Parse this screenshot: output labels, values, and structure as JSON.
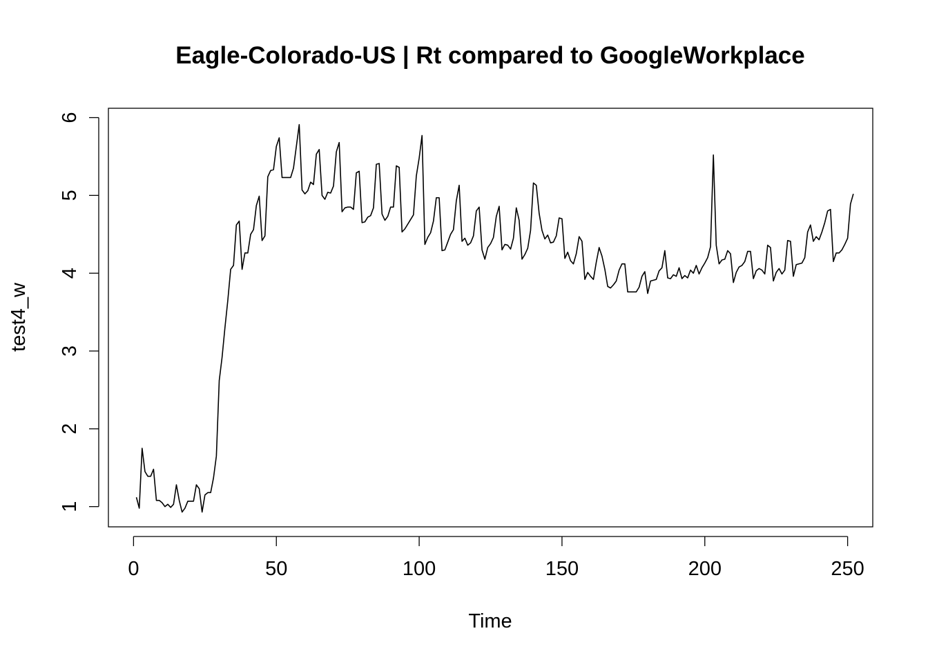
{
  "chart_data": {
    "type": "line",
    "title": "Eagle-Colorado-US | Rt compared to GoogleWorkplace",
    "xlabel": "Time",
    "ylabel": "test4_w",
    "xlim": [
      -8.8,
      258.8
    ],
    "ylim": [
      0.74,
      6.12
    ],
    "x_ticks": [
      0,
      50,
      100,
      150,
      200,
      250
    ],
    "y_ticks": [
      1,
      2,
      3,
      4,
      5,
      6
    ],
    "grid": false,
    "legend": "none",
    "line_color": "#000000",
    "series": [
      {
        "x_start": 1,
        "x_step": 1,
        "values": [
          1.12,
          0.98,
          1.75,
          1.45,
          1.39,
          1.39,
          1.48,
          1.08,
          1.08,
          1.05,
          1.0,
          1.03,
          0.99,
          1.03,
          1.28,
          1.08,
          0.93,
          0.98,
          1.07,
          1.07,
          1.07,
          1.28,
          1.23,
          0.93,
          1.15,
          1.18,
          1.18,
          1.37,
          1.65,
          2.62,
          2.92,
          3.3,
          3.65,
          4.05,
          4.1,
          4.62,
          4.67,
          4.05,
          4.26,
          4.26,
          4.5,
          4.56,
          4.87,
          4.99,
          4.42,
          4.48,
          5.24,
          5.32,
          5.33,
          5.63,
          5.74,
          5.23,
          5.23,
          5.23,
          5.23,
          5.35,
          5.63,
          5.91,
          5.07,
          5.02,
          5.06,
          5.17,
          5.14,
          5.53,
          5.59,
          5.0,
          4.95,
          5.04,
          5.03,
          5.12,
          5.56,
          5.68,
          4.79,
          4.84,
          4.85,
          4.85,
          4.82,
          5.29,
          5.31,
          4.65,
          4.66,
          4.72,
          4.74,
          4.84,
          5.4,
          5.41,
          4.76,
          4.68,
          4.73,
          4.85,
          4.85,
          5.38,
          5.36,
          4.53,
          4.57,
          4.63,
          4.69,
          4.75,
          5.25,
          5.48,
          5.77,
          4.37,
          4.46,
          4.52,
          4.67,
          4.97,
          4.97,
          4.29,
          4.3,
          4.4,
          4.5,
          4.56,
          4.93,
          5.13,
          4.41,
          4.45,
          4.36,
          4.39,
          4.48,
          4.8,
          4.85,
          4.3,
          4.18,
          4.33,
          4.38,
          4.46,
          4.73,
          4.86,
          4.3,
          4.37,
          4.36,
          4.31,
          4.45,
          4.84,
          4.68,
          4.18,
          4.24,
          4.32,
          4.55,
          5.16,
          5.13,
          4.77,
          4.55,
          4.44,
          4.49,
          4.39,
          4.4,
          4.48,
          4.71,
          4.7,
          4.19,
          4.27,
          4.16,
          4.12,
          4.25,
          4.47,
          4.41,
          3.92,
          4.01,
          3.96,
          3.92,
          4.14,
          4.33,
          4.22,
          4.05,
          3.83,
          3.81,
          3.85,
          3.9,
          4.04,
          4.12,
          4.12,
          3.76,
          3.76,
          3.76,
          3.76,
          3.82,
          3.96,
          4.02,
          3.74,
          3.9,
          3.91,
          3.92,
          4.03,
          4.07,
          4.29,
          3.94,
          3.93,
          3.98,
          3.96,
          4.07,
          3.93,
          3.97,
          3.94,
          4.04,
          4.0,
          4.1,
          3.99,
          4.07,
          4.13,
          4.2,
          4.34,
          5.52,
          4.36,
          4.12,
          4.17,
          4.18,
          4.29,
          4.25,
          3.88,
          4.01,
          4.08,
          4.1,
          4.15,
          4.28,
          4.28,
          3.93,
          4.03,
          4.06,
          4.04,
          3.99,
          4.36,
          4.33,
          3.9,
          4.01,
          4.06,
          3.99,
          4.04,
          4.42,
          4.41,
          3.96,
          4.11,
          4.12,
          4.13,
          4.2,
          4.53,
          4.62,
          4.41,
          4.47,
          4.43,
          4.53,
          4.65,
          4.8,
          4.82,
          4.15,
          4.26,
          4.26,
          4.3,
          4.37,
          4.45,
          4.89,
          5.02
        ]
      }
    ]
  }
}
